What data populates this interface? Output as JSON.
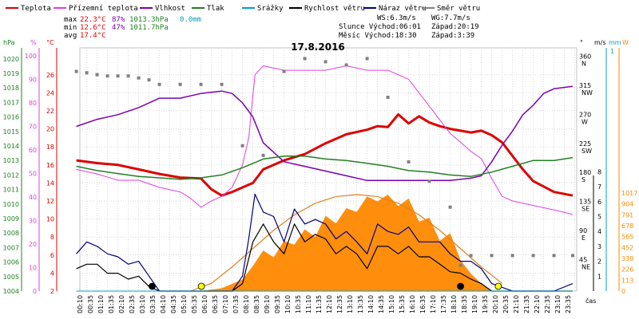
{
  "legend": [
    {
      "label": "Teplota",
      "color": "#dd0000"
    },
    {
      "label": "Přízemní teplota",
      "color": "#e040e0"
    },
    {
      "label": "Vlhkost",
      "color": "#7a00b0"
    },
    {
      "label": "Tlak",
      "color": "#208020"
    },
    {
      "label": "Srážky",
      "color": "#00a0c0"
    },
    {
      "label": "Rychlost větru",
      "color": "#000000"
    },
    {
      "label": "Náraz větru",
      "color": "#000080"
    },
    {
      "label": "Směr větru",
      "color": "#808080"
    }
  ],
  "stats": {
    "max_label": "max",
    "max_temp": "22.3°C",
    "max_hum": "87%",
    "max_press": "1013.3hPa",
    "rain": "0.0mm",
    "min_label": "min",
    "min_temp": "12.6°C",
    "min_hum": "47%",
    "min_press": "1011.7hPa",
    "avg_label": "avg",
    "avg_temp": "17.4°C"
  },
  "info": {
    "ws": "WS:6.3m/s",
    "wg": "WG:7.7m/s",
    "sun_rise": "Slunce Východ:06:01",
    "sun_set": "Západ:20:19",
    "moon_rise": "Měsíc  Východ:18:30",
    "moon_set": "Západ:3:39"
  },
  "axis_units": {
    "hpa": "hPa",
    "pct": "%",
    "degc": "°C",
    "deg": "°",
    "ms": "m/s",
    "mm": "mm",
    "wm2": "W",
    "time": "čas"
  },
  "colors": {
    "temp": "#dd0000",
    "ground": "#e040e0",
    "hum": "#7a00b0",
    "press": "#208020",
    "rain": "#00a0c0",
    "speed": "#000000",
    "gust": "#000080",
    "dir": "#808080",
    "solar": "#ff8800",
    "sun": "#e08020"
  },
  "chart_data": {
    "type": "line",
    "title": "17.8.2016",
    "x_unit": "hour",
    "x_ticks": [
      "00:10",
      "00:35",
      "01:10",
      "01:35",
      "02:10",
      "02:35",
      "03:10",
      "03:35",
      "04:10",
      "04:35",
      "05:10",
      "05:35",
      "06:10",
      "06:35",
      "07:10",
      "07:35",
      "08:10",
      "08:35",
      "09:10",
      "09:35",
      "10:10",
      "10:35",
      "11:10",
      "11:35",
      "12:10",
      "12:35",
      "13:10",
      "13:35",
      "14:10",
      "14:35",
      "15:10",
      "15:35",
      "16:10",
      "16:35",
      "17:10",
      "17:35",
      "18:10",
      "18:35",
      "19:10",
      "19:35",
      "20:10",
      "20:35",
      "21:10",
      "21:35",
      "22:10",
      "22:35",
      "23:10",
      "23:35"
    ],
    "axes": {
      "hpa": {
        "ticks": [
          "1020",
          "1019",
          "1018",
          "1017",
          "1016",
          "1015",
          "1014",
          "1013",
          "1012",
          "1011",
          "1010",
          "1009",
          "1008",
          "1007",
          "1006",
          "1005",
          "1004"
        ],
        "range": [
          1004,
          1020.5
        ]
      },
      "pct": {
        "ticks": [
          "100",
          "90",
          "80",
          "70",
          "60",
          "50",
          "40",
          "30",
          "20",
          "10",
          "0"
        ],
        "range": [
          0,
          100
        ]
      },
      "temp": {
        "ticks": [
          "26",
          "24",
          "22",
          "20",
          "18",
          "16",
          "14",
          "12",
          "10",
          "8",
          "6",
          "4",
          "2"
        ],
        "range": [
          2,
          27
        ]
      },
      "dir": {
        "ticks": [
          "360 N",
          "315 NW",
          "270 W",
          "225 SW",
          "180 S",
          "135 SE",
          "90 E",
          "45 NE"
        ],
        "range": [
          0,
          360
        ]
      },
      "ms": {
        "ticks": [
          "8",
          "7",
          "6",
          "5",
          "4",
          "3",
          "2",
          "1"
        ],
        "range": [
          0,
          8
        ]
      },
      "mm": {
        "ticks": [
          "1"
        ],
        "range": [
          0,
          1
        ]
      },
      "wm2": {
        "ticks": [
          "1017",
          "904",
          "791",
          "678",
          "565",
          "452",
          "339",
          "226",
          "113",
          "0"
        ],
        "range": [
          0,
          1017
        ]
      }
    },
    "series": [
      {
        "name": "Teplota",
        "axis": "temp",
        "x": [
          0,
          1,
          2,
          3,
          4,
          5,
          6,
          6.5,
          7,
          7.5,
          8,
          8.5,
          9,
          10,
          11,
          12,
          13,
          14,
          14.5,
          15,
          15.5,
          16,
          16.5,
          17,
          17.5,
          18,
          18.5,
          19,
          19.5,
          20,
          20.5,
          21,
          21.5,
          22,
          23,
          23.9
        ],
        "y": [
          16.5,
          16.2,
          16,
          15.5,
          15,
          14.6,
          14.5,
          13.3,
          12.6,
          13,
          13.5,
          14,
          15.5,
          16.5,
          17.2,
          18.4,
          19.4,
          19.9,
          20.3,
          20.2,
          21.6,
          20.6,
          21.4,
          20.7,
          20.3,
          20,
          19.8,
          19.6,
          19.8,
          19.3,
          18.5,
          17,
          15.5,
          14.2,
          13,
          12.6
        ]
      },
      {
        "name": "Přízemní teplota",
        "axis": "temp",
        "x": [
          0,
          1,
          2,
          3,
          4,
          5,
          5.5,
          6,
          6.5,
          7,
          7.5,
          8,
          8.3,
          8.6,
          9,
          10,
          11,
          12,
          13,
          14,
          15,
          16,
          17,
          18,
          19,
          19.5,
          20,
          20.5,
          21,
          22,
          23,
          23.9
        ],
        "y": [
          15.5,
          15,
          14.3,
          14.3,
          13.5,
          13,
          12.3,
          11.3,
          12,
          12.5,
          13.5,
          16,
          19,
          26,
          27,
          26.5,
          26.5,
          26.5,
          27,
          26.5,
          26.5,
          25.5,
          22.5,
          19.5,
          17.5,
          16.7,
          14.5,
          12.5,
          12,
          11.5,
          11,
          10.5
        ]
      },
      {
        "name": "Vlhkost",
        "axis": "pct",
        "x": [
          0,
          1,
          2,
          3,
          4,
          5,
          6,
          7,
          7.5,
          8,
          8.5,
          9,
          10,
          11,
          12,
          13,
          14,
          15,
          16,
          17,
          18,
          19,
          19.5,
          20,
          20.5,
          21,
          21.5,
          22,
          22.5,
          23,
          23.9
        ],
        "y": [
          70,
          73,
          75,
          78,
          82,
          82,
          84,
          85,
          84,
          80,
          74,
          63,
          55,
          53,
          51,
          49,
          47,
          47,
          47,
          47,
          47,
          48,
          49,
          55,
          62,
          68,
          75,
          79,
          84,
          86,
          87
        ]
      },
      {
        "name": "Tlak",
        "axis": "hpa",
        "x": [
          0,
          1,
          2,
          3,
          4,
          5,
          6,
          7,
          8,
          9,
          10,
          11,
          12,
          13,
          14,
          15,
          16,
          17,
          18,
          19,
          20,
          21,
          22,
          23,
          23.9
        ],
        "y": [
          1012.6,
          1012.3,
          1012.1,
          1011.9,
          1011.8,
          1011.7,
          1011.8,
          1012,
          1012.5,
          1013.1,
          1013.3,
          1013.3,
          1013.1,
          1013,
          1012.8,
          1012.6,
          1012.3,
          1012.2,
          1012,
          1011.9,
          1012.2,
          1012.6,
          1013,
          1013,
          1013.2
        ]
      },
      {
        "name": "Rychlost větru",
        "axis": "ms",
        "x": [
          0,
          0.5,
          1,
          1.5,
          2,
          2.5,
          3,
          3.5,
          4,
          5,
          6,
          7,
          7.5,
          8,
          8.5,
          9,
          9.5,
          10,
          10.5,
          11,
          11.5,
          12,
          12.5,
          13,
          13.5,
          14,
          14.5,
          15,
          15.5,
          16,
          16.5,
          17,
          17.5,
          18,
          18.5,
          19,
          19.5,
          20,
          21,
          22,
          23,
          23.9
        ],
        "y": [
          1.5,
          1.8,
          1.8,
          1.2,
          1.2,
          0.8,
          1,
          0.3,
          0,
          0,
          0,
          0,
          0,
          0.5,
          3.3,
          4.5,
          3.3,
          2.5,
          4.5,
          3.3,
          3.8,
          3.5,
          2.5,
          3,
          2.5,
          1.5,
          3,
          3,
          2.5,
          3,
          2.3,
          2.3,
          1.8,
          1.3,
          1.2,
          0.8,
          0.5,
          0,
          0,
          0,
          0,
          0
        ]
      },
      {
        "name": "Náraz větru",
        "axis": "ms",
        "x": [
          0,
          0.5,
          1,
          1.5,
          2,
          2.5,
          3,
          3.5,
          4,
          5,
          6,
          7,
          7.5,
          8,
          8.3,
          8.6,
          9,
          9.5,
          10,
          10.5,
          11,
          11.5,
          12,
          12.5,
          13,
          13.5,
          14,
          14.5,
          15,
          15.5,
          16,
          16.5,
          17,
          17.5,
          18,
          18.5,
          19,
          19.5,
          20,
          21,
          22,
          23,
          23.9
        ],
        "y": [
          2.5,
          3.3,
          3,
          2.5,
          2.3,
          1.8,
          2,
          1,
          0,
          0,
          0,
          0,
          0,
          1,
          3.5,
          6.5,
          5.3,
          5,
          3.3,
          5.5,
          4.5,
          4.8,
          4.5,
          3.5,
          4,
          3.3,
          2.5,
          4.5,
          4,
          3.8,
          4.3,
          3.3,
          3.3,
          3.3,
          2.5,
          2,
          2,
          1.5,
          0.5,
          0,
          0,
          0,
          0.5
        ]
      },
      {
        "name": "Směr větru",
        "axis": "dir",
        "x": [
          0,
          0.5,
          1,
          1.5,
          2,
          2.5,
          3,
          3.5,
          4,
          5,
          6,
          7,
          8,
          9,
          10,
          11,
          12,
          13,
          14,
          15,
          16,
          17,
          18,
          18.5,
          19,
          20,
          21,
          22,
          23,
          23.9
        ],
        "y": [
          340,
          338,
          335,
          333,
          333,
          333,
          330,
          327,
          320,
          320,
          320,
          320,
          225,
          210,
          340,
          360,
          355,
          350,
          360,
          300,
          200,
          170,
          130,
          40,
          55,
          55,
          55,
          55,
          55,
          55
        ]
      },
      {
        "name": "Srážky",
        "axis": "mm",
        "x": [
          0,
          23.9
        ],
        "y": [
          0,
          0
        ]
      }
    ],
    "solar": {
      "axis": "wm2",
      "x": [
        6,
        7,
        8,
        8.5,
        9,
        9.5,
        10,
        10.5,
        11,
        11.5,
        12,
        12.5,
        13,
        13.5,
        14,
        14.5,
        15,
        15.5,
        16,
        16.5,
        17,
        17.5,
        18,
        18.5,
        19,
        19.5,
        20
      ],
      "y": [
        0,
        30,
        120,
        260,
        420,
        350,
        520,
        480,
        640,
        560,
        780,
        700,
        860,
        820,
        980,
        930,
        1000,
        880,
        960,
        720,
        760,
        520,
        600,
        320,
        180,
        80,
        0
      ]
    },
    "solar_max": {
      "axis": "wm2",
      "x": [
        5.5,
        6.5,
        7.5,
        8.5,
        9.5,
        10.5,
        11.5,
        12.5,
        13.5,
        14.5,
        15.5,
        16.5,
        17.5,
        18.5,
        19.5,
        20.5
      ],
      "y": [
        0,
        80,
        250,
        440,
        630,
        790,
        910,
        980,
        1000,
        980,
        910,
        790,
        630,
        440,
        250,
        80
      ]
    },
    "markers": [
      {
        "kind": "sun",
        "x": 6.02,
        "color": "#ffff00"
      },
      {
        "kind": "moon",
        "x": 3.65,
        "color": "#000000"
      },
      {
        "kind": "moon",
        "x": 18.5,
        "color": "#000000"
      },
      {
        "kind": "sun",
        "x": 20.32,
        "color": "#ffff00"
      }
    ]
  }
}
